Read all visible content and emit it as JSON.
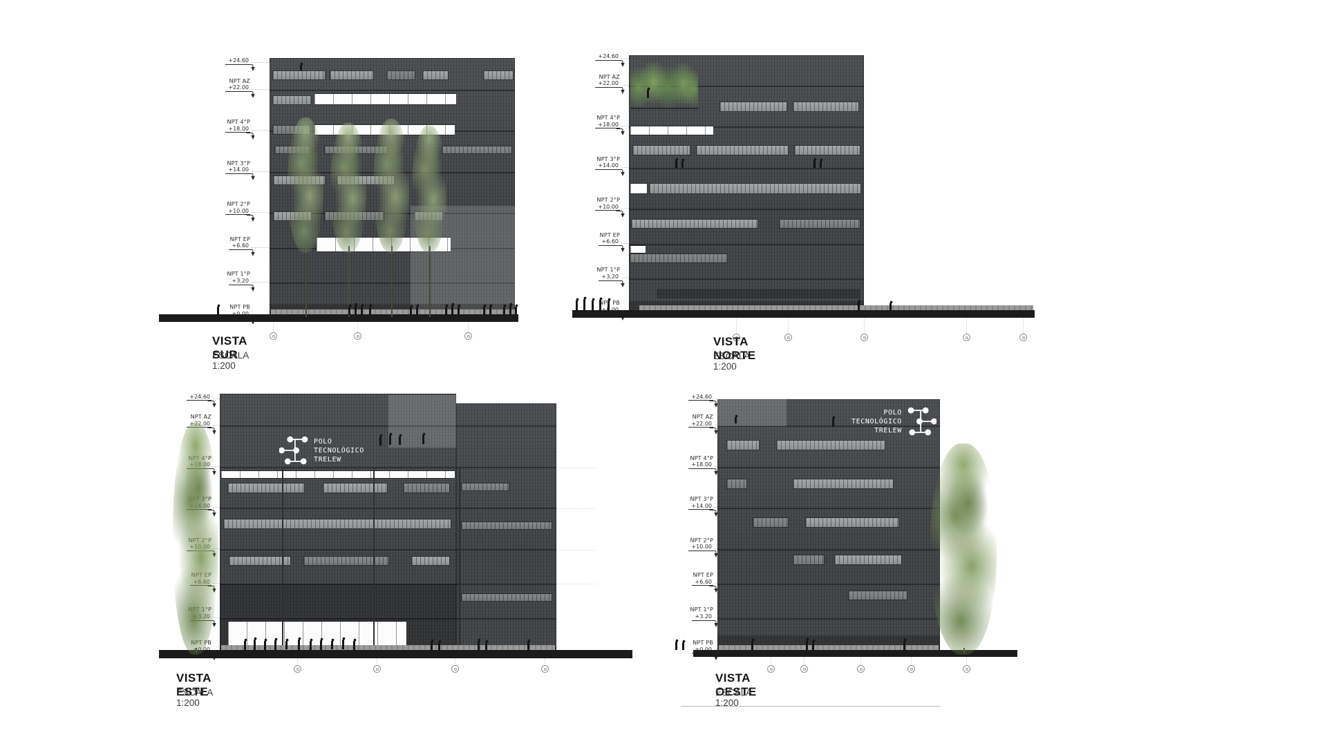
{
  "sheet": {
    "background": "#ffffff"
  },
  "levels": [
    {
      "name": "",
      "elev": "+24.60",
      "m": 24.6
    },
    {
      "name": "NPT AZ",
      "elev": "+22.00",
      "m": 22.0
    },
    {
      "name": "NPT 4°P",
      "elev": "+18.00",
      "m": 18.0
    },
    {
      "name": "NPT 3°P",
      "elev": "+14.00",
      "m": 14.0
    },
    {
      "name": "NPT 2°P",
      "elev": "+10.00",
      "m": 10.0
    },
    {
      "name": "NPT EP",
      "elev": "+6.60",
      "m": 6.6
    },
    {
      "name": "NPT 1°P",
      "elev": "+3.20",
      "m": 3.2
    },
    {
      "name": "NPT PB",
      "elev": "±0.00",
      "m": 0.0
    }
  ],
  "views": [
    {
      "id": "sur",
      "title": "VISTA SUR",
      "scale_label": "ESCALA 1:200"
    },
    {
      "id": "norte",
      "title": "VISTA NORTE",
      "scale_label": "ESCALA 1:200"
    },
    {
      "id": "este",
      "title": "VISTA ESTE",
      "scale_label": "ESCALA 1:200",
      "logo_lines": [
        "POLO",
        "TECNOLÓGICO",
        "TRELEW"
      ]
    },
    {
      "id": "oeste",
      "title": "VISTA OESTE",
      "scale_label": "ESCALA 1:200",
      "logo_lines": [
        "POLO",
        "TECNOLÓGICO",
        "TRELEW"
      ]
    }
  ],
  "colors": {
    "facade_dark": "#4b4e51",
    "window_band": "#9b9e9f",
    "glazing_white": "#fcfcfc",
    "tree_green": "#7f9a62",
    "ground_black": "#1b1b1b",
    "label_ink": "#2a2a2a",
    "title_ink": "#141414"
  }
}
